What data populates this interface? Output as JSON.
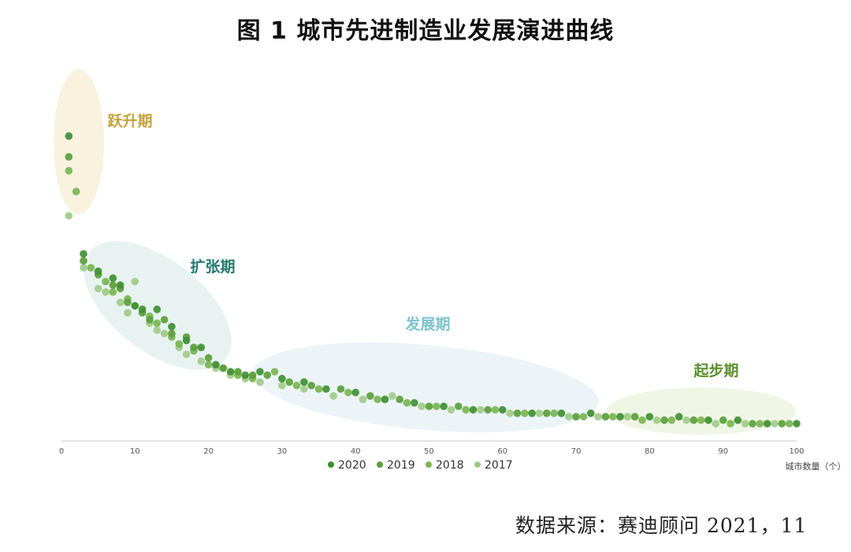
{
  "title": "图 1  城市先进制造业发展演进曲线",
  "source": "数据来源：赛迪顾问 2021，11",
  "colors": {
    "series": [
      "#3f8f33",
      "#5b9e3c",
      "#79b553",
      "#9fcb88"
    ],
    "axis": "#c8c8c8",
    "tick": "#555555"
  },
  "chart_data": {
    "type": "scatter",
    "title": "图 1  城市先进制造业发展演进曲线",
    "xlabel": "城市数量（个）",
    "ylabel": "",
    "xlim": [
      0,
      100
    ],
    "ylim": [
      0,
      100
    ],
    "xticks": [
      0,
      10,
      20,
      30,
      40,
      50,
      60,
      70,
      80,
      90,
      100
    ],
    "grid": false,
    "legend_position": "bottom-center",
    "series_names": [
      "2020",
      "2019",
      "2018",
      "2017"
    ],
    "phases": [
      {
        "label": "跃升期",
        "x_range": [
          0,
          6
        ],
        "color": "#c4a23b",
        "fill": "#f7f1dc"
      },
      {
        "label": "扩张期",
        "x_range": [
          2,
          26
        ],
        "color": "#24786f",
        "fill": "#e6f2ef"
      },
      {
        "label": "发展期",
        "x_range": [
          26,
          73
        ],
        "color": "#7ec3cd",
        "fill": "#eaf3f7"
      },
      {
        "label": "起步期",
        "x_range": [
          73,
          100
        ],
        "color": "#5b8f2c",
        "fill": "#eef5e3"
      }
    ],
    "series": [
      {
        "name": "2020",
        "x": [
          1,
          3,
          5,
          7,
          8,
          10,
          11,
          13,
          15,
          17,
          19,
          21,
          23,
          25,
          27,
          30,
          33,
          36,
          40,
          44,
          48,
          52,
          56,
          60,
          64,
          68,
          72,
          76,
          80,
          84,
          88,
          92,
          96,
          100
        ],
        "y": [
          88,
          54,
          49,
          47,
          45,
          39,
          38,
          38,
          33,
          29,
          27,
          22,
          20,
          19,
          20,
          18,
          17,
          15,
          14,
          12,
          11,
          10,
          9,
          9,
          8,
          8,
          8,
          7,
          7,
          7,
          6,
          6,
          5,
          5
        ]
      },
      {
        "name": "2019",
        "x": [
          1,
          3,
          5,
          7,
          8,
          9,
          11,
          12,
          14,
          15,
          17,
          18,
          20,
          22,
          24,
          26,
          28,
          31,
          34,
          38,
          42,
          46,
          50,
          54,
          58,
          62,
          66,
          70,
          74,
          78,
          82,
          86,
          90,
          94,
          98
        ],
        "y": [
          82,
          52,
          48,
          45,
          44,
          40,
          37,
          35,
          35,
          31,
          30,
          27,
          24,
          21,
          20,
          19,
          19,
          17,
          16,
          15,
          13,
          12,
          10,
          10,
          9,
          8,
          8,
          7,
          7,
          7,
          6,
          6,
          6,
          5,
          5
        ]
      },
      {
        "name": "2018",
        "x": [
          1,
          2,
          4,
          6,
          7,
          9,
          10,
          12,
          13,
          15,
          16,
          18,
          20,
          22,
          24,
          26,
          29,
          32,
          35,
          39,
          43,
          47,
          51,
          55,
          59,
          63,
          67,
          71,
          75,
          79,
          83,
          87,
          91,
          95,
          99
        ],
        "y": [
          78,
          72,
          50,
          46,
          43,
          41,
          39,
          36,
          34,
          30,
          28,
          26,
          22,
          21,
          19,
          18,
          20,
          16,
          15,
          14,
          12,
          11,
          10,
          9,
          9,
          8,
          8,
          7,
          7,
          6,
          6,
          6,
          5,
          5,
          5
        ]
      },
      {
        "name": "2017",
        "x": [
          1,
          3,
          5,
          6,
          8,
          9,
          10,
          12,
          13,
          14,
          16,
          17,
          19,
          21,
          23,
          25,
          27,
          30,
          33,
          37,
          41,
          45,
          49,
          53,
          57,
          61,
          65,
          69,
          73,
          77,
          81,
          85,
          89,
          93,
          97
        ],
        "y": [
          65,
          50,
          44,
          43,
          40,
          37,
          46,
          34,
          32,
          31,
          27,
          25,
          23,
          21,
          19,
          18,
          17,
          16,
          15,
          13,
          12,
          13,
          10,
          9,
          9,
          8,
          8,
          7,
          7,
          7,
          6,
          6,
          5,
          5,
          5
        ]
      }
    ]
  }
}
